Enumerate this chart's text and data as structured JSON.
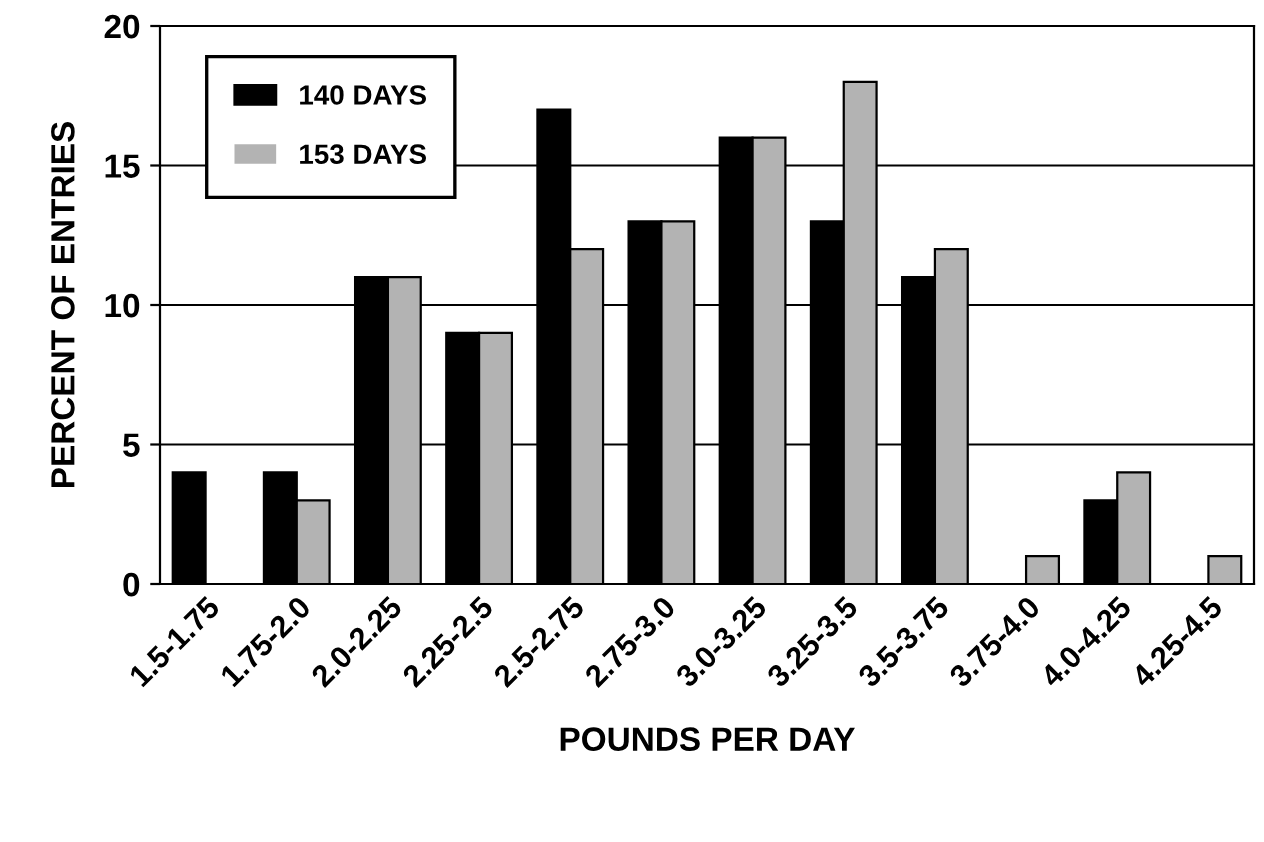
{
  "chart_data": {
    "type": "bar",
    "xlabel": "POUNDS PER DAY",
    "ylabel": "PERCENT OF ENTRIES",
    "categories": [
      "1.5-1.75",
      "1.75-2.0",
      "2.0-2.25",
      "2.25-2.5",
      "2.5-2.75",
      "2.75-3.0",
      "3.0-3.25",
      "3.25-3.5",
      "3.5-3.75",
      "3.75-4.0",
      "4.0-4.25",
      "4.25-4.5"
    ],
    "series": [
      {
        "name": "140 DAYS",
        "color": "#000000",
        "values": [
          4,
          4,
          11,
          9,
          17,
          13,
          16,
          13,
          11,
          0,
          3,
          0
        ]
      },
      {
        "name": "153 DAYS",
        "color": "#b3b3b3",
        "values": [
          0,
          3,
          11,
          9,
          12,
          13,
          16,
          18,
          12,
          1,
          4,
          1
        ]
      }
    ],
    "ylim": [
      0,
      20
    ],
    "yticks": [
      0,
      5,
      10,
      15,
      20
    ],
    "grid": "y",
    "legend": "top left"
  }
}
